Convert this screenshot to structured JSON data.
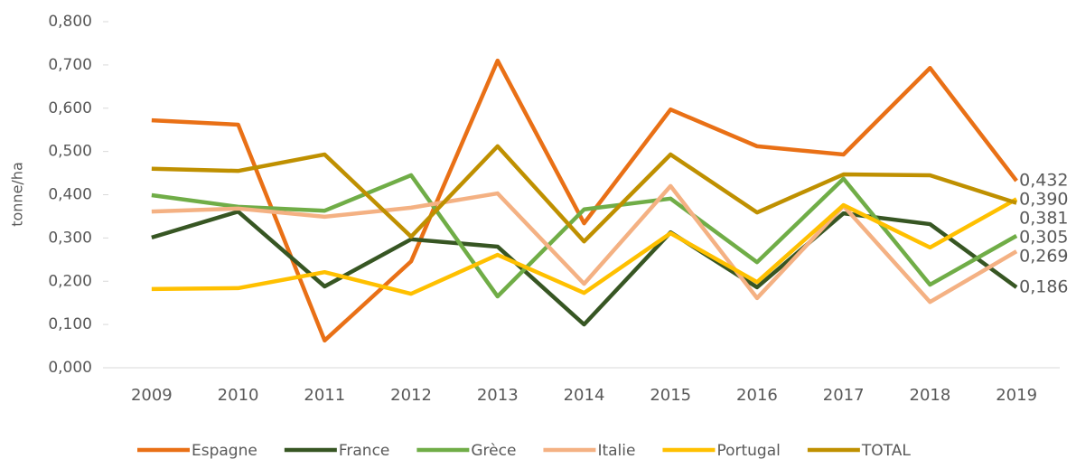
{
  "chart_data": {
    "type": "line",
    "y_axis_label": "tonne/ha",
    "categories": [
      "2009",
      "2010",
      "2011",
      "2012",
      "2013",
      "2014",
      "2015",
      "2016",
      "2017",
      "2018",
      "2019"
    ],
    "series": [
      {
        "name": "Espagne",
        "color": "#e97016",
        "values": [
          0.572,
          0.562,
          0.063,
          0.246,
          0.71,
          0.334,
          0.597,
          0.512,
          0.493,
          0.693,
          0.432
        ],
        "value_labels": [
          null,
          null,
          null,
          null,
          null,
          null,
          null,
          null,
          null,
          null,
          "0,432"
        ]
      },
      {
        "name": "France",
        "color": "#375623",
        "values": [
          0.301,
          0.361,
          0.188,
          0.297,
          0.28,
          0.1,
          0.313,
          0.186,
          0.357,
          0.332,
          0.186
        ],
        "value_labels": [
          null,
          null,
          null,
          null,
          null,
          null,
          null,
          null,
          null,
          null,
          "0,186"
        ]
      },
      {
        "name": "Grèce",
        "color": "#70ad47",
        "values": [
          0.399,
          0.372,
          0.363,
          0.445,
          0.165,
          0.366,
          0.391,
          0.244,
          0.437,
          0.192,
          0.305
        ],
        "value_labels": [
          null,
          null,
          null,
          null,
          null,
          null,
          null,
          null,
          null,
          null,
          "0,305"
        ]
      },
      {
        "name": "Italie",
        "color": "#f4b183",
        "values": [
          0.361,
          0.368,
          0.349,
          0.37,
          0.403,
          0.194,
          0.42,
          0.161,
          0.374,
          0.152,
          0.269
        ],
        "value_labels": [
          null,
          null,
          null,
          null,
          null,
          null,
          null,
          null,
          null,
          null,
          "0,269"
        ]
      },
      {
        "name": "Portugal",
        "color": "#ffc000",
        "values": [
          0.182,
          0.184,
          0.221,
          0.171,
          0.261,
          0.173,
          0.311,
          0.198,
          0.376,
          0.278,
          0.39
        ],
        "value_labels": [
          null,
          null,
          null,
          null,
          null,
          null,
          null,
          null,
          null,
          null,
          "0,390"
        ]
      },
      {
        "name": "TOTAL",
        "color": "#bf9000",
        "values": [
          0.46,
          0.455,
          0.493,
          0.303,
          0.512,
          0.292,
          0.493,
          0.359,
          0.447,
          0.445,
          0.381
        ],
        "value_labels": [
          null,
          null,
          null,
          null,
          null,
          null,
          null,
          null,
          null,
          null,
          "0,381"
        ]
      }
    ],
    "ylim": [
      0,
      0.8
    ],
    "yticks": [
      {
        "value": 0,
        "label": "0,000"
      },
      {
        "value": 0.1,
        "label": "0,100"
      },
      {
        "value": 0.2,
        "label": "0,200"
      },
      {
        "value": 0.3,
        "label": "0,300"
      },
      {
        "value": 0.4,
        "label": "0,400"
      },
      {
        "value": 0.5,
        "label": "0,500"
      },
      {
        "value": 0.6,
        "label": "0,600"
      },
      {
        "value": 0.7,
        "label": "0,700"
      },
      {
        "value": 0.8,
        "label": "0,800"
      }
    ],
    "grid": false,
    "legend": "bottom"
  }
}
